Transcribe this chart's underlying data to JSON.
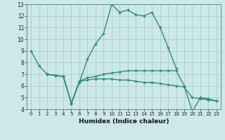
{
  "xlabel": "Humidex (Indice chaleur)",
  "x": [
    0,
    1,
    2,
    3,
    4,
    5,
    6,
    7,
    8,
    9,
    10,
    11,
    12,
    13,
    14,
    15,
    16,
    17,
    18,
    19,
    20,
    21,
    22,
    23
  ],
  "line1": [
    9.0,
    7.7,
    7.0,
    6.9,
    6.8,
    4.5,
    6.3,
    8.3,
    9.6,
    10.5,
    13.0,
    12.3,
    12.5,
    12.1,
    12.0,
    12.3,
    11.0,
    9.3,
    7.5,
    null,
    null,
    null,
    null,
    null
  ],
  "line2": [
    null,
    null,
    7.0,
    6.9,
    6.8,
    4.5,
    6.4,
    6.7,
    6.8,
    7.0,
    7.1,
    7.2,
    7.3,
    7.3,
    7.3,
    7.3,
    7.3,
    7.3,
    7.3,
    6.0,
    3.8,
    5.0,
    4.9,
    4.7
  ],
  "line3": [
    null,
    null,
    7.0,
    6.9,
    6.8,
    4.5,
    6.4,
    6.5,
    6.6,
    6.6,
    6.6,
    6.5,
    6.5,
    6.4,
    6.3,
    6.3,
    6.2,
    6.1,
    6.0,
    5.9,
    5.0,
    4.9,
    4.8,
    4.7
  ],
  "color": "#2e8b7a",
  "bg_color": "#cce8e8",
  "grid_color": "#aacece",
  "ylim": [
    4,
    13
  ],
  "xlim": [
    -0.5,
    23.5
  ],
  "yticks": [
    4,
    5,
    6,
    7,
    8,
    9,
    10,
    11,
    12,
    13
  ],
  "xticks": [
    0,
    1,
    2,
    3,
    4,
    5,
    6,
    7,
    8,
    9,
    10,
    11,
    12,
    13,
    14,
    15,
    16,
    17,
    18,
    19,
    20,
    21,
    22,
    23
  ]
}
